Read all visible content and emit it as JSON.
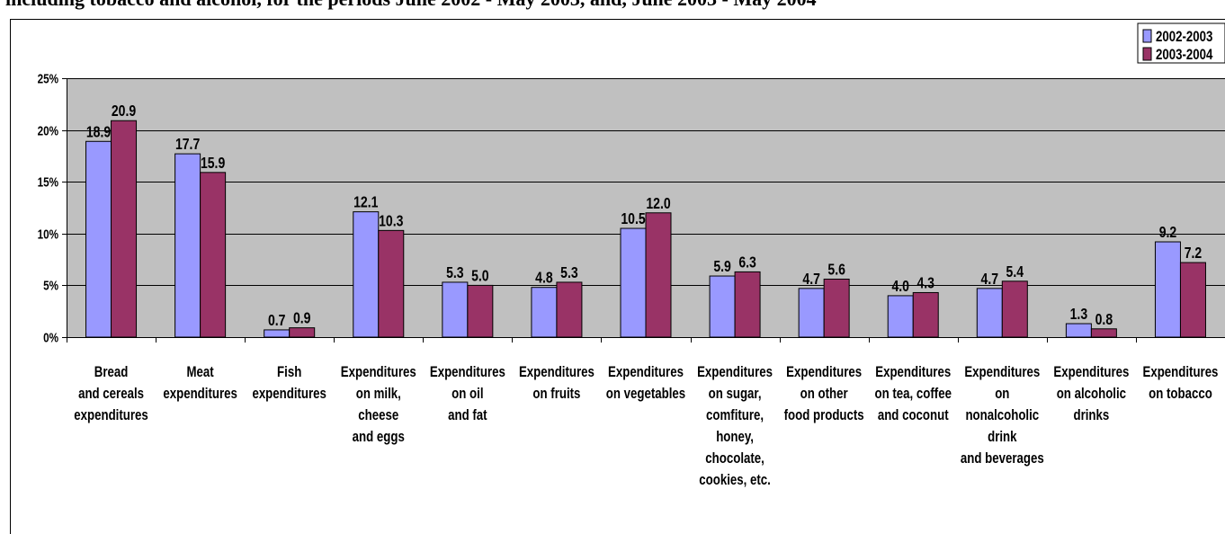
{
  "chart_data": {
    "type": "bar",
    "title": "including tobacco and alcohol, for the periods June 2002 - May 2003, and, June 2003 - May 2004",
    "xlabel": "",
    "ylabel": "",
    "ylim": [
      0,
      25
    ],
    "yticks": [
      "0%",
      "5%",
      "10%",
      "15%",
      "20%",
      "25%"
    ],
    "ytick_values": [
      0,
      5,
      10,
      15,
      20,
      25
    ],
    "grid": true,
    "legend_position": "top-right",
    "categories": [
      [
        "Bread",
        "and cereals",
        "expenditures"
      ],
      [
        "Meat",
        "expenditures"
      ],
      [
        "Fish",
        "expenditures"
      ],
      [
        "Expenditures",
        "on milk,",
        "cheese",
        "and eggs"
      ],
      [
        "Expenditures",
        "on oil",
        "and fat"
      ],
      [
        "Expenditures",
        "on fruits"
      ],
      [
        "Expenditures",
        "on vegetables"
      ],
      [
        "Expenditures",
        "on sugar,",
        "comfiture,",
        "honey,",
        "chocolate,",
        "cookies, etc."
      ],
      [
        "Expenditures",
        "on other",
        "food products"
      ],
      [
        "Expenditures",
        "on tea, coffee",
        "and coconut"
      ],
      [
        "Expenditures",
        "on",
        "nonalcoholic",
        "drink",
        "and beverages"
      ],
      [
        "Expenditures",
        "on alcoholic",
        "drinks"
      ],
      [
        "Expenditures",
        "on tobacco"
      ]
    ],
    "series": [
      {
        "name": "2002-2003",
        "color": "#9999ff",
        "values": [
          18.9,
          17.7,
          0.7,
          12.1,
          5.3,
          4.8,
          10.5,
          5.9,
          4.7,
          4.0,
          4.7,
          1.3,
          9.2
        ],
        "labels": [
          "18.9",
          "17.7",
          "0.7",
          "12.1",
          "5.3",
          "4.8",
          "10.5",
          "5.9",
          "4.7",
          "4.0",
          "4.7",
          "1.3",
          "9.2"
        ]
      },
      {
        "name": "2003-2004",
        "color": "#993366",
        "values": [
          20.9,
          15.9,
          0.9,
          10.3,
          5.0,
          5.3,
          12.0,
          6.3,
          5.6,
          4.3,
          5.4,
          0.8,
          7.2
        ],
        "labels": [
          "20.9",
          "15.9",
          "0.9",
          "10.3",
          "5.0",
          "5.3",
          "12.0",
          "6.3",
          "5.6",
          "4.3",
          "5.4",
          "0.8",
          "7.2"
        ]
      }
    ],
    "colors": {
      "plot_background": "#c0c0c0",
      "gridline": "#000000",
      "text": "#000000"
    }
  }
}
